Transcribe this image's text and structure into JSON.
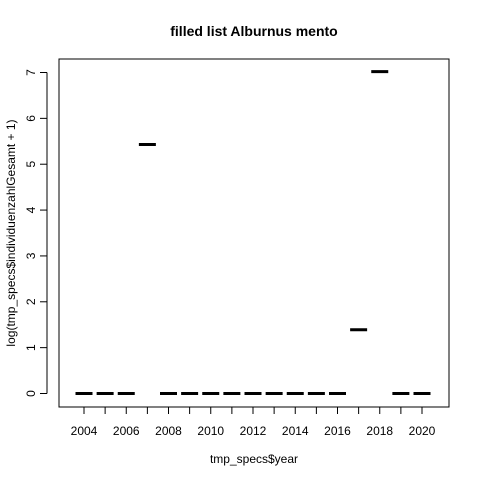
{
  "chart_data": {
    "type": "box",
    "title": "filled list Alburnus mento",
    "xlabel": "tmp_specs$year",
    "ylabel": "log(tmp_specs$individuenzahlGesamt + 1)",
    "categories": [
      "2004",
      "2005",
      "2006",
      "2007",
      "2008",
      "2009",
      "2010",
      "2011",
      "2012",
      "2013",
      "2014",
      "2015",
      "2016",
      "2017",
      "2018",
      "2019",
      "2020"
    ],
    "x_tick_labels": [
      "2004",
      "2006",
      "2008",
      "2010",
      "2012",
      "2014",
      "2016",
      "2018",
      "2020"
    ],
    "values": [
      0,
      0,
      0,
      5.43,
      0,
      0,
      0,
      0,
      0,
      0,
      0,
      0,
      0,
      1.39,
      7.02,
      0,
      0
    ],
    "ylim": [
      0,
      7
    ],
    "y_ticks": [
      "0",
      "1",
      "2",
      "3",
      "4",
      "5",
      "6",
      "7"
    ],
    "grid": false,
    "legend": "none"
  }
}
